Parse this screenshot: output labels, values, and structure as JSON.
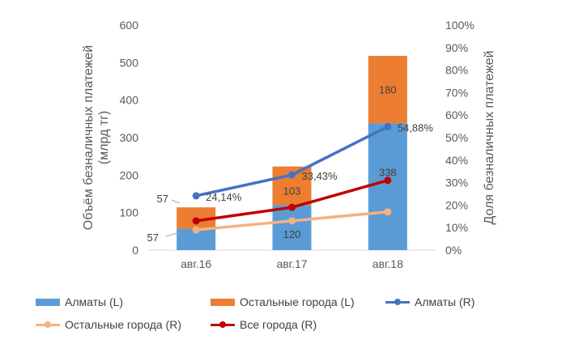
{
  "chart_data": {
    "type": "bar",
    "categories": [
      "авг.16",
      "авг.17",
      "авг.18"
    ],
    "bar_series": [
      {
        "name": "Алматы (L)",
        "values": [
          57,
          120,
          338
        ],
        "labels": [
          "57",
          "120",
          "338"
        ],
        "color": "#5B9BD5"
      },
      {
        "name": "Остальные города (L)",
        "values": [
          57,
          103,
          180
        ],
        "labels": [
          "57",
          "103",
          "180"
        ],
        "color": "#ED7D31"
      }
    ],
    "line_series": [
      {
        "name": "Алматы (R)",
        "values": [
          24.14,
          33.43,
          54.88
        ],
        "labels": [
          "24,14%",
          "33,43%",
          "54,88%"
        ],
        "color": "#4472C4"
      },
      {
        "name": "Остальные города (R)",
        "values": [
          9,
          13,
          17
        ],
        "color": "#F4B183"
      },
      {
        "name": "Все города (R)",
        "values": [
          13,
          19,
          31
        ],
        "color": "#C00000"
      }
    ],
    "ylabel_left": [
      "Объём безналичных платежей",
      "(млрд тг)"
    ],
    "ylabel_right": "Доля безналичных платежей",
    "ylim_left": [
      0,
      600
    ],
    "yticks_left": [
      "0",
      "100",
      "200",
      "300",
      "400",
      "500",
      "600"
    ],
    "ylim_right": [
      0,
      100
    ],
    "yticks_right": [
      "0%",
      "10%",
      "20%",
      "30%",
      "40%",
      "50%",
      "60%",
      "70%",
      "80%",
      "90%",
      "100%"
    ],
    "grid": false,
    "legend_position": "bottom"
  }
}
